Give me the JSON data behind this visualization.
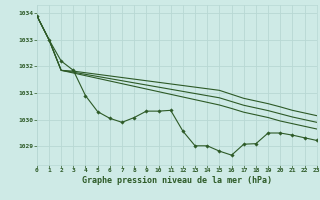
{
  "title": "Graphe pression niveau de la mer (hPa)",
  "background_color": "#ceeae6",
  "grid_color": "#b8d8d4",
  "line_color": "#2d5a27",
  "xlim": [
    0,
    23
  ],
  "ylim": [
    1028.3,
    1034.3
  ],
  "yticks": [
    1029,
    1030,
    1031,
    1032,
    1033,
    1034
  ],
  "xticks": [
    0,
    1,
    2,
    3,
    4,
    5,
    6,
    7,
    8,
    9,
    10,
    11,
    12,
    13,
    14,
    15,
    16,
    17,
    18,
    19,
    20,
    21,
    22,
    23
  ],
  "lines_no_marker": [
    [
      1033.9,
      1033.0,
      1031.85,
      1031.75,
      1031.65,
      1031.55,
      1031.45,
      1031.35,
      1031.25,
      1031.15,
      1031.05,
      1030.95,
      1030.85,
      1030.75,
      1030.65,
      1030.55,
      1030.42,
      1030.28,
      1030.18,
      1030.08,
      1029.95,
      1029.85,
      1029.75,
      1029.65
    ],
    [
      1033.9,
      1033.0,
      1031.85,
      1031.78,
      1031.7,
      1031.62,
      1031.54,
      1031.46,
      1031.38,
      1031.3,
      1031.22,
      1031.14,
      1031.06,
      1030.98,
      1030.9,
      1030.82,
      1030.68,
      1030.54,
      1030.44,
      1030.34,
      1030.22,
      1030.1,
      1030.0,
      1029.9
    ],
    [
      1033.9,
      1033.0,
      1031.85,
      1031.82,
      1031.76,
      1031.7,
      1031.64,
      1031.58,
      1031.52,
      1031.46,
      1031.4,
      1031.34,
      1031.28,
      1031.22,
      1031.16,
      1031.1,
      1030.95,
      1030.8,
      1030.7,
      1030.6,
      1030.48,
      1030.35,
      1030.25,
      1030.15
    ]
  ],
  "line_with_marker": [
    1033.9,
    1033.0,
    1032.2,
    1031.85,
    1030.9,
    1030.3,
    1030.05,
    1029.9,
    1030.08,
    1030.32,
    1030.32,
    1030.35,
    1029.57,
    1029.02,
    1029.02,
    1028.82,
    1028.67,
    1029.08,
    1029.1,
    1029.5,
    1029.5,
    1029.42,
    1029.32,
    1029.22
  ]
}
